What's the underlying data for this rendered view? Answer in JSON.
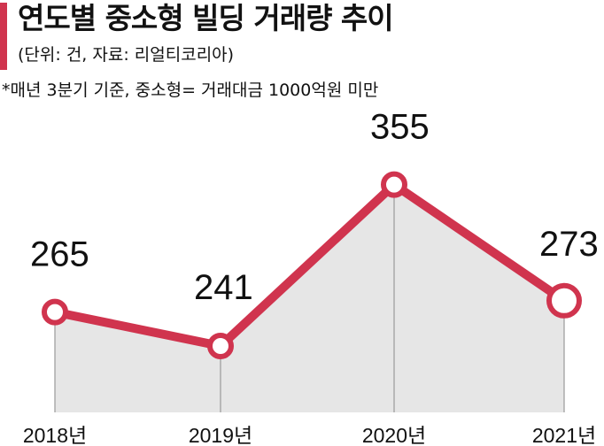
{
  "header": {
    "title": "연도별 중소형 빌딩 거래량 추이",
    "unit_source": "(단위: 건, 자료: 리얼티코리아)",
    "note": "*매년 3분기 기준, 중소형= 거래대금 1000억원 미만"
  },
  "colors": {
    "accent": "#d0344e",
    "area_fill": "#e6e6e6",
    "guide_line": "#9a9a9a"
  },
  "chart_data": {
    "type": "line",
    "categories": [
      "2018년",
      "2019년",
      "2020년",
      "2021년"
    ],
    "values": [
      265,
      241,
      355,
      273
    ],
    "area_filled": true,
    "markers": "hollow-circle",
    "data_labels": [
      "265",
      "241",
      "355",
      "273"
    ]
  }
}
